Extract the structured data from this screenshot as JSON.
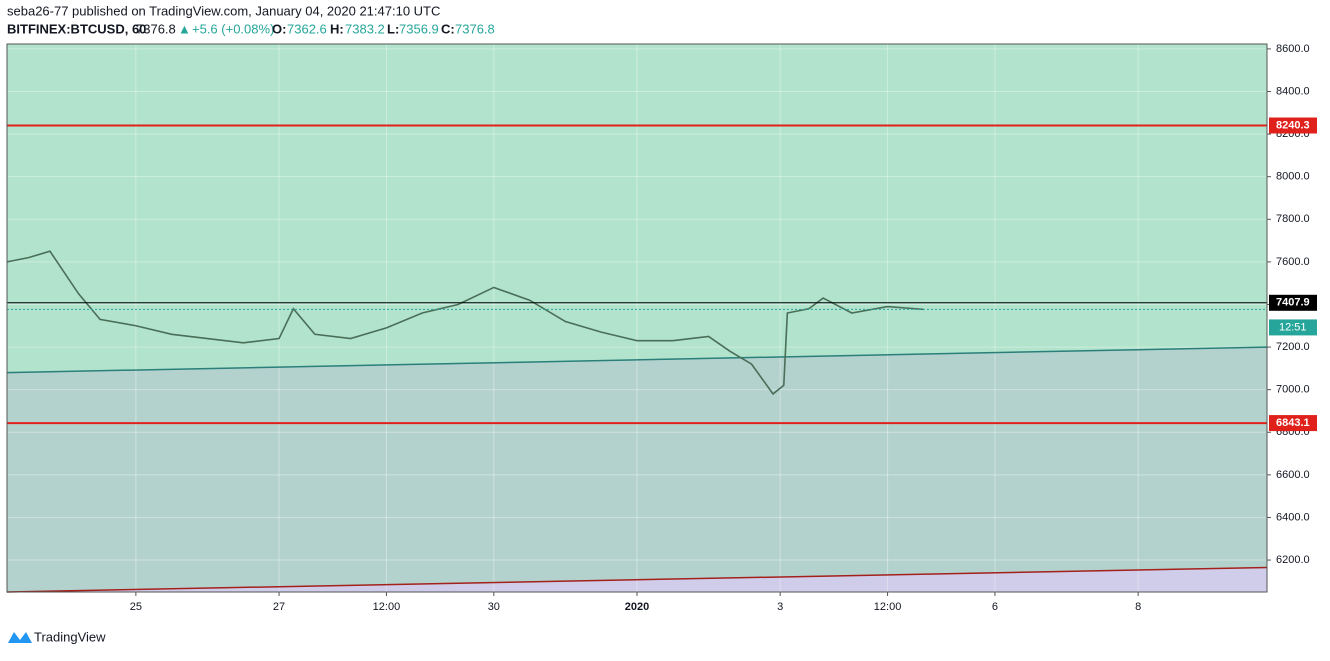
{
  "header": {
    "publisher": "seba26-77 published on TradingView.com, January 04, 2020 21:47:10 UTC",
    "symbol": "BITFINEX:BTCUSD, 60",
    "last": "7376.8",
    "arrow": "▲",
    "change": "+5.6 (+0.08%)",
    "o_label": "O:",
    "o": "7362.6",
    "h_label": "H:",
    "h": "7383.2",
    "l_label": "L:",
    "l": "7356.9",
    "c_label": "C:",
    "c": "7376.8"
  },
  "chart_data": {
    "type": "line",
    "color": "#4a6e58",
    "x": [
      -1.8,
      -1.5,
      -1.2,
      -0.8,
      -0.5,
      0,
      0.5,
      1,
      1.5,
      2,
      2.2,
      2.5,
      3,
      3.5,
      4,
      4.5,
      5,
      5.5,
      6,
      6.5,
      7,
      7.5,
      8,
      8.3,
      8.6,
      8.9,
      9.05,
      9.1,
      9.4,
      9.6,
      10,
      10.5,
      11
    ],
    "values": [
      7600,
      7620,
      7650,
      7450,
      7330,
      7300,
      7260,
      7240,
      7220,
      7240,
      7380,
      7260,
      7240,
      7290,
      7360,
      7400,
      7480,
      7420,
      7320,
      7270,
      7230,
      7230,
      7250,
      7180,
      7120,
      6980,
      7020,
      7360,
      7380,
      7430,
      7360,
      7390,
      7377
    ],
    "xlim": [
      -1.8,
      15.8
    ],
    "ylim": [
      6050,
      8623
    ],
    "xticks": [
      {
        "value": 0,
        "label": "25"
      },
      {
        "value": 2,
        "label": "27"
      },
      {
        "value": 3.5,
        "label": "12:00"
      },
      {
        "value": 5,
        "label": "30"
      },
      {
        "value": 7,
        "label": "2020"
      },
      {
        "value": 9,
        "label": "3"
      },
      {
        "value": 10.5,
        "label": "12:00"
      },
      {
        "value": 12,
        "label": "6"
      },
      {
        "value": 14,
        "label": "8"
      }
    ],
    "yticks": [
      {
        "value": 6200,
        "label": "6200.0"
      },
      {
        "value": 6400,
        "label": "6400.0"
      },
      {
        "value": 6600,
        "label": "6600.0"
      },
      {
        "value": 6800,
        "label": "6800.0"
      },
      {
        "value": 7000,
        "label": "7000.0"
      },
      {
        "value": 7200,
        "label": "7200.0"
      },
      {
        "value": 7400,
        "label": "7400.0"
      },
      {
        "value": 7600,
        "label": "7600.0"
      },
      {
        "value": 7800,
        "label": "7800.0"
      },
      {
        "value": 8000,
        "label": "8000.0"
      },
      {
        "value": 8200,
        "label": "8200.0"
      },
      {
        "value": 8400,
        "label": "8400.0"
      },
      {
        "value": 8600,
        "label": "8600.0"
      }
    ],
    "grid": true,
    "hlines": [
      {
        "value": 8240.3,
        "color": "#e0201b"
      },
      {
        "value": 6843.1,
        "color": "#e0201b"
      },
      {
        "value": 7407.9,
        "color": "#000000"
      }
    ],
    "current": {
      "value": 7376.8,
      "color": "#26a69a",
      "countdown": "12:51"
    },
    "trendlines": [
      {
        "start": [
          -1.8,
          7080
        ],
        "end": [
          15.8,
          7200
        ],
        "color": "#2a7f7a",
        "fill": "#b4d2cd"
      },
      {
        "start": [
          -1.8,
          6050
        ],
        "end": [
          15.8,
          6165
        ],
        "color": "#a3201b",
        "fill": "#cfcdea"
      }
    ]
  },
  "footer": {
    "brand": "TradingView"
  }
}
